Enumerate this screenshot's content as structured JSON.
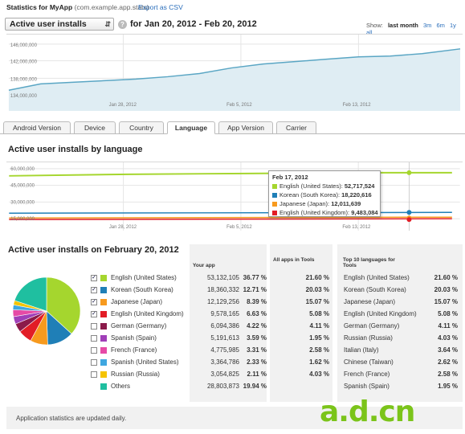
{
  "header": {
    "title": "Statistics for MyApp",
    "package": "(com.example.app.stats)",
    "export": "Export as CSV"
  },
  "metric_select": "Active user installs",
  "date_range": "for  Jan 20, 2012 - Feb 20, 2012",
  "show": {
    "label": "Show:",
    "options": [
      "last month",
      "3m",
      "6m",
      "1y",
      "all"
    ],
    "active": "last month"
  },
  "top_chart": {
    "y_ticks": [
      "146,000,000",
      "142,000,000",
      "138,000,000",
      "134,000,000"
    ],
    "x_ticks": [
      "Jan 28, 2012",
      "Feb 5, 2012",
      "Feb 13, 2012"
    ]
  },
  "tabs": [
    "Android Version",
    "Device",
    "Country",
    "Language",
    "App Version",
    "Carrier"
  ],
  "active_tab": "Language",
  "lang_chart_title": "Active user installs by language",
  "lang_chart": {
    "y_ticks": [
      "60,000,000",
      "45,000,000",
      "30,000,000",
      "15,000,000"
    ],
    "x_ticks": [
      "Jan 28, 2012",
      "Feb 5, 2012",
      "Feb 13, 2012"
    ]
  },
  "tooltip": {
    "title": "Feb 17, 2012",
    "rows": [
      {
        "label": "English (United States): ",
        "value": "52,717,524",
        "color": "#a5d62e"
      },
      {
        "label": "Korean (South Korea): ",
        "value": "18,220,616",
        "color": "#1f7fb7"
      },
      {
        "label": "Japanese (Japan): ",
        "value": "12,011,639",
        "color": "#f79a1e"
      },
      {
        "label": "English (United Kingdom): ",
        "value": "9,483,084",
        "color": "#e21d26"
      }
    ]
  },
  "table_title": "Active user installs on February 20, 2012",
  "table_headers": {
    "your_app": "Your app",
    "all_apps": "All apps in Tools",
    "top10": "Top 10 languages for Tools"
  },
  "rows": [
    {
      "name": "English (United States)",
      "count": "53,132,105",
      "pct": "36.77 %",
      "all": "21.60 %",
      "checked": true,
      "color": "#a5d62e"
    },
    {
      "name": "Korean (South Korea)",
      "count": "18,360,332",
      "pct": "12.71 %",
      "all": "20.03 %",
      "checked": true,
      "color": "#1f7fb7"
    },
    {
      "name": "Japanese (Japan)",
      "count": "12,129,256",
      "pct": "8.39 %",
      "all": "15.07 %",
      "checked": true,
      "color": "#f79a1e"
    },
    {
      "name": "English (United Kingdom)",
      "count": "9,578,165",
      "pct": "6.63 %",
      "all": "5.08 %",
      "checked": true,
      "color": "#e21d26"
    },
    {
      "name": "German (Germany)",
      "count": "6,094,386",
      "pct": "4.22 %",
      "all": "4.11 %",
      "checked": false,
      "color": "#8b1a4a"
    },
    {
      "name": "Spanish (Spain)",
      "count": "5,191,613",
      "pct": "3.59 %",
      "all": "1.95 %",
      "checked": false,
      "color": "#a03fb8"
    },
    {
      "name": "French (France)",
      "count": "4,775,985",
      "pct": "3.31 %",
      "all": "2.58 %",
      "checked": false,
      "color": "#e64aa6"
    },
    {
      "name": "Spanish (United States)",
      "count": "3,364,786",
      "pct": "2.33 %",
      "all": "1.62 %",
      "checked": false,
      "color": "#3fa7e0"
    },
    {
      "name": "Russian (Russia)",
      "count": "3,054,825",
      "pct": "2.11 %",
      "all": "4.03 %",
      "checked": false,
      "color": "#f5c400"
    },
    {
      "name": "Others",
      "count": "28,803,873",
      "pct": "19.94 %",
      "all": "",
      "checked": null,
      "color": "#1fbfa0"
    }
  ],
  "top10": [
    {
      "name": "English (United States)",
      "pct": "21.60 %"
    },
    {
      "name": "Korean (South Korea)",
      "pct": "20.03 %"
    },
    {
      "name": "Japanese (Japan)",
      "pct": "15.07 %"
    },
    {
      "name": "English (United Kingdom)",
      "pct": "5.08 %"
    },
    {
      "name": "German (Germany)",
      "pct": "4.11 %"
    },
    {
      "name": "Russian (Russia)",
      "pct": "4.03 %"
    },
    {
      "name": "Italian (Italy)",
      "pct": "3.64 %"
    },
    {
      "name": "Chinese (Taiwan)",
      "pct": "2.62 %"
    },
    {
      "name": "French (France)",
      "pct": "2.58 %"
    },
    {
      "name": "Spanish (Spain)",
      "pct": "1.95 %"
    }
  ],
  "footer": "Application statistics are updated daily.",
  "watermark": "a.d.cn"
}
